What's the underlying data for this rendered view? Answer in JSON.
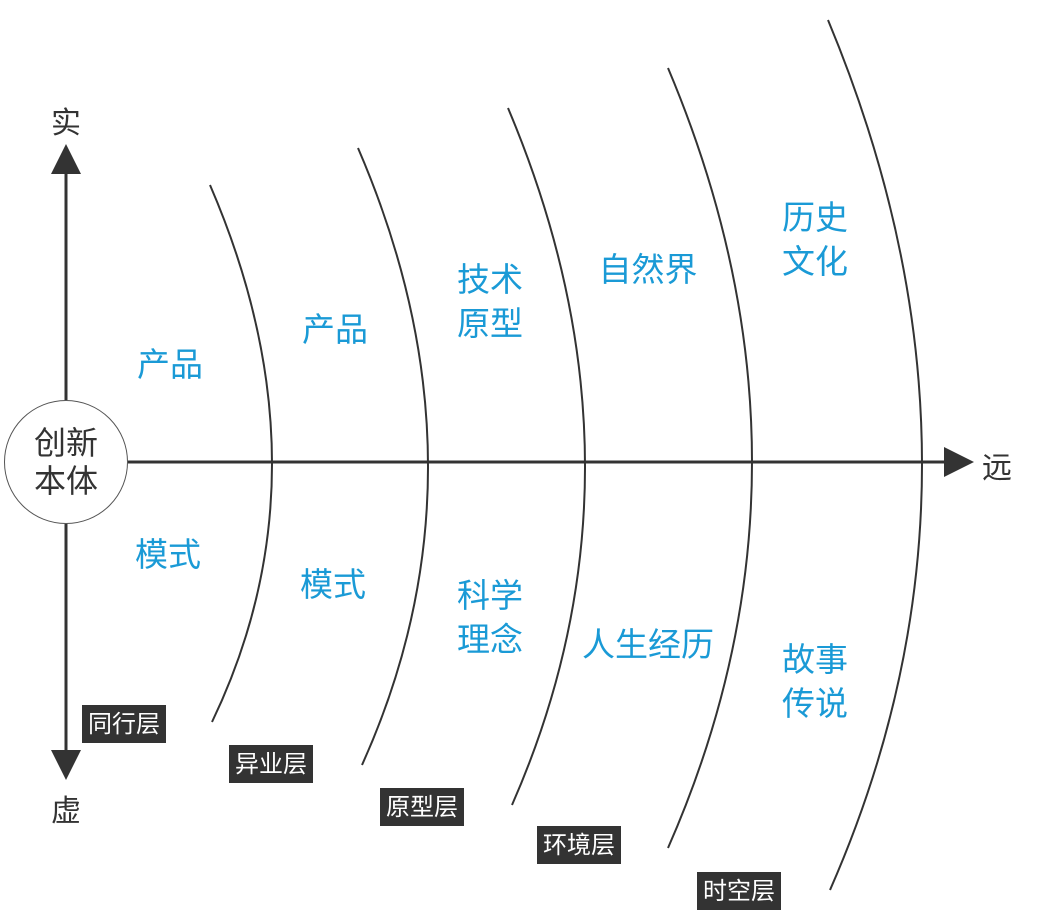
{
  "center": {
    "line1": "创新",
    "line2": "本体"
  },
  "axes": {
    "top": "实",
    "bottom": "虚",
    "right": "远"
  },
  "upper_labels": [
    {
      "line1": "产品"
    },
    {
      "line1": "产品"
    },
    {
      "line1": "技术",
      "line2": "原型"
    },
    {
      "line1": "自然界"
    },
    {
      "line1": "历史",
      "line2": "文化"
    }
  ],
  "lower_labels": [
    {
      "line1": "模式"
    },
    {
      "line1": "模式"
    },
    {
      "line1": "科学",
      "line2": "理念"
    },
    {
      "line1": "人生经历"
    },
    {
      "line1": "故事",
      "line2": "传说"
    }
  ],
  "layers": [
    "同行层",
    "异业层",
    "原型层",
    "环境层",
    "时空层"
  ],
  "colors": {
    "label": "#1a9ad6",
    "layer_box": "#333333",
    "line": "#333333"
  }
}
